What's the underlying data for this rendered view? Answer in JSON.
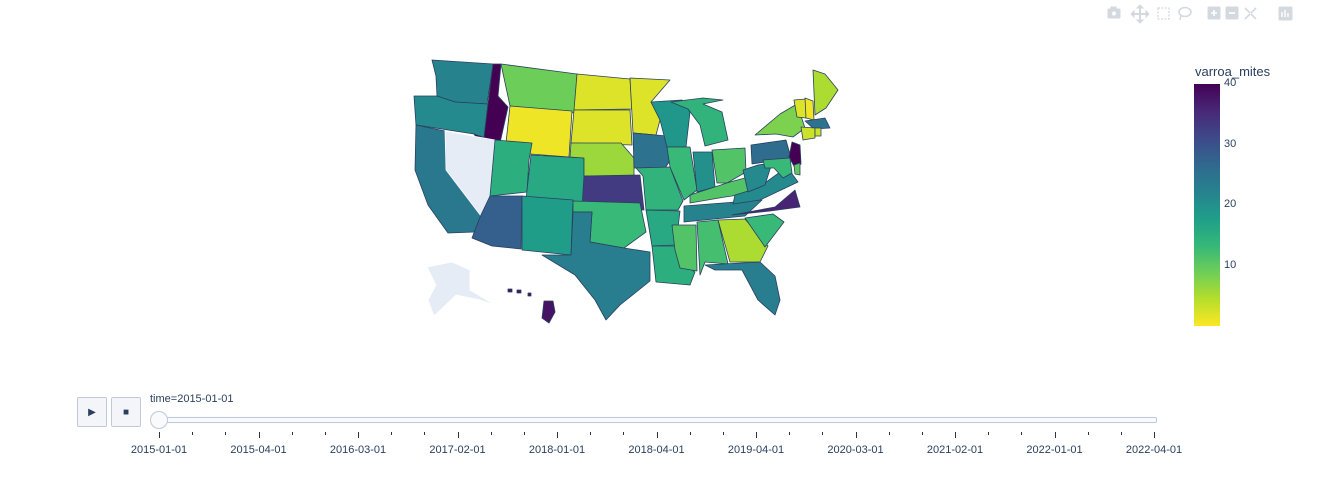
{
  "toolbar": {
    "icons": [
      "camera-icon",
      "pan-icon",
      "box-select-icon",
      "lasso-icon",
      "zoom-in-icon",
      "zoom-out-icon",
      "autoscale-icon",
      "plotly-logo-icon"
    ]
  },
  "colors": {
    "missing": "#e5ecf6",
    "border": "#2a3f5f",
    "viridis": [
      "#fde725",
      "#b5de2b",
      "#6ece58",
      "#35b779",
      "#1f9e89",
      "#26828e",
      "#31688e",
      "#3e4989",
      "#482878",
      "#440154"
    ]
  },
  "slider": {
    "current_label": "time=2015-01-01",
    "play_icon": "▶",
    "stop_icon": "■",
    "ticks": [
      "2015-01-01",
      "2015-04-01",
      "2016-03-01",
      "2017-02-01",
      "2018-01-01",
      "2018-04-01",
      "2019-04-01",
      "2020-03-01",
      "2021-02-01",
      "2022-01-01",
      "2022-04-01"
    ]
  },
  "chart_data": {
    "type": "choropleth",
    "scope": "usa",
    "frame": "2015-01-01",
    "color_variable": "varroa_mites",
    "colorbar": {
      "title": "varroa_mites",
      "ticks": [
        10,
        20,
        30,
        40
      ],
      "range": [
        0,
        40
      ],
      "colorscale": "viridis_r"
    },
    "values": {
      "WA": 22,
      "OR": 21,
      "CA": 24,
      "ID": 40,
      "NV": null,
      "MT": 9,
      "WY": 1,
      "UT": 15,
      "AZ": 28,
      "CO": 16,
      "NM": 18,
      "ND": 2,
      "SD": 2,
      "NE": 6,
      "KS": 33,
      "OK": 13,
      "TX": 23,
      "MN": 2,
      "IA": 25,
      "MO": 14,
      "AR": 16,
      "LA": 15,
      "WI": 19,
      "IL": 13,
      "MI": 14,
      "IN": 20,
      "OH": 11,
      "KY": 11,
      "TN": 22,
      "MS": 11,
      "AL": 12,
      "GA": 5,
      "FL": 23,
      "SC": 13,
      "NC": 36,
      "VA": 21,
      "WV": 21,
      "PA": 26,
      "NY": 8,
      "VT": 2,
      "NH": 1,
      "ME": 5,
      "MA": 25,
      "CT": 3,
      "RI": 3,
      "NJ": 40,
      "DE": 10,
      "MD": 13,
      "AK": null,
      "HI": 38
    }
  }
}
